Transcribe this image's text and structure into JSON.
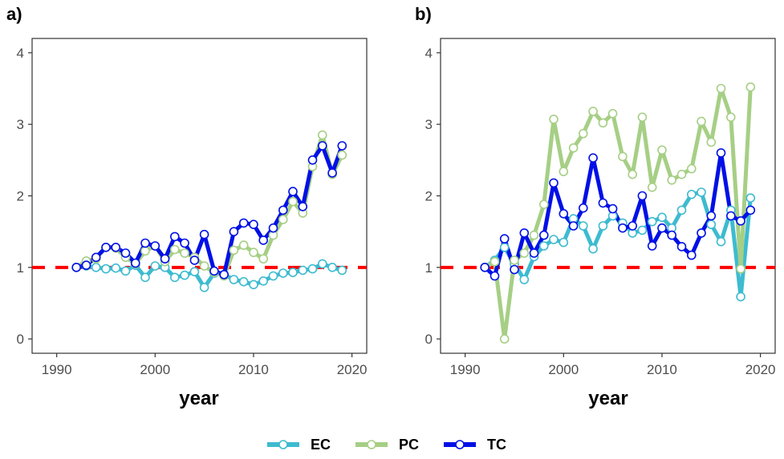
{
  "colors": {
    "EC": "#3dbbd0",
    "PC": "#a6cf85",
    "TC": "#0010e6",
    "ref": "#ff0000"
  },
  "legend": {
    "items": [
      "EC",
      "PC",
      "TC"
    ]
  },
  "chart_data": [
    {
      "type": "line",
      "panel_label": "a)",
      "xlabel": "year",
      "ylabel": "",
      "xlim": [
        1987.5,
        2021.5
      ],
      "ylim": [
        -0.2,
        4.2
      ],
      "xticks": [
        "1990",
        "2000",
        "2010",
        "2020"
      ],
      "yticks": [
        "0",
        "1",
        "2",
        "3",
        "4"
      ],
      "reference_line": {
        "y": 1,
        "style": "dashed",
        "color": "red"
      },
      "x": [
        1992,
        1993,
        1994,
        1995,
        1996,
        1997,
        1998,
        1999,
        2000,
        2001,
        2002,
        2003,
        2004,
        2005,
        2006,
        2007,
        2008,
        2009,
        2010,
        2011,
        2012,
        2013,
        2014,
        2015,
        2016,
        2017,
        2018,
        2019
      ],
      "series": [
        {
          "name": "EC",
          "values": [
            1.0,
            1.02,
            1.0,
            0.98,
            0.99,
            0.95,
            1.03,
            0.86,
            1.02,
            1.0,
            0.86,
            0.89,
            0.94,
            0.72,
            0.92,
            0.9,
            0.83,
            0.8,
            0.76,
            0.81,
            0.88,
            0.92,
            0.93,
            0.96,
            0.98,
            1.05,
            1.0,
            0.96
          ]
        },
        {
          "name": "PC",
          "values": [
            1.0,
            1.09,
            1.12,
            1.28,
            1.27,
            1.14,
            1.05,
            1.23,
            1.3,
            1.08,
            1.25,
            1.2,
            1.14,
            1.02,
            0.93,
            0.88,
            1.24,
            1.31,
            1.21,
            1.12,
            1.45,
            1.67,
            1.92,
            1.76,
            2.41,
            2.85,
            2.3,
            2.57
          ]
        },
        {
          "name": "TC",
          "values": [
            1.0,
            1.03,
            1.14,
            1.28,
            1.28,
            1.2,
            1.06,
            1.34,
            1.3,
            1.12,
            1.43,
            1.34,
            1.1,
            1.46,
            0.95,
            0.9,
            1.5,
            1.62,
            1.6,
            1.38,
            1.55,
            1.8,
            2.06,
            1.85,
            2.5,
            2.7,
            2.32,
            2.7
          ]
        }
      ]
    },
    {
      "type": "line",
      "panel_label": "b)",
      "xlabel": "year",
      "ylabel": "",
      "xlim": [
        1987.5,
        2021.5
      ],
      "ylim": [
        -0.2,
        4.2
      ],
      "xticks": [
        "1990",
        "2000",
        "2010",
        "2020"
      ],
      "yticks": [
        "0",
        "1",
        "2",
        "3",
        "4"
      ],
      "reference_line": {
        "y": 1,
        "style": "dashed",
        "color": "red"
      },
      "x": [
        1992,
        1993,
        1994,
        1995,
        1996,
        1997,
        1998,
        1999,
        2000,
        2001,
        2002,
        2003,
        2004,
        2005,
        2006,
        2007,
        2008,
        2009,
        2010,
        2011,
        2012,
        2013,
        2014,
        2015,
        2016,
        2017,
        2018,
        2019
      ],
      "series": [
        {
          "name": "EC",
          "values": [
            1.0,
            1.1,
            1.28,
            1.05,
            0.83,
            1.15,
            1.3,
            1.39,
            1.35,
            1.68,
            1.58,
            1.26,
            1.58,
            1.72,
            1.62,
            1.48,
            1.52,
            1.64,
            1.7,
            1.55,
            1.8,
            2.02,
            2.05,
            1.6,
            1.36,
            1.8,
            0.59,
            1.97
          ]
        },
        {
          "name": "PC",
          "values": [
            1.0,
            1.08,
            0.0,
            1.1,
            1.2,
            1.45,
            1.88,
            3.07,
            2.34,
            2.67,
            2.87,
            3.18,
            3.02,
            3.15,
            2.55,
            2.3,
            3.1,
            2.12,
            2.64,
            2.22,
            2.3,
            2.38,
            3.04,
            2.75,
            3.5,
            3.1,
            0.98,
            3.52
          ]
        },
        {
          "name": "TC",
          "values": [
            1.0,
            0.88,
            1.4,
            0.97,
            1.48,
            1.2,
            1.45,
            2.18,
            1.75,
            1.58,
            1.83,
            2.53,
            1.9,
            1.82,
            1.55,
            1.58,
            2.0,
            1.3,
            1.55,
            1.45,
            1.29,
            1.17,
            1.48,
            1.72,
            2.6,
            1.72,
            1.65,
            1.8
          ]
        }
      ]
    }
  ]
}
